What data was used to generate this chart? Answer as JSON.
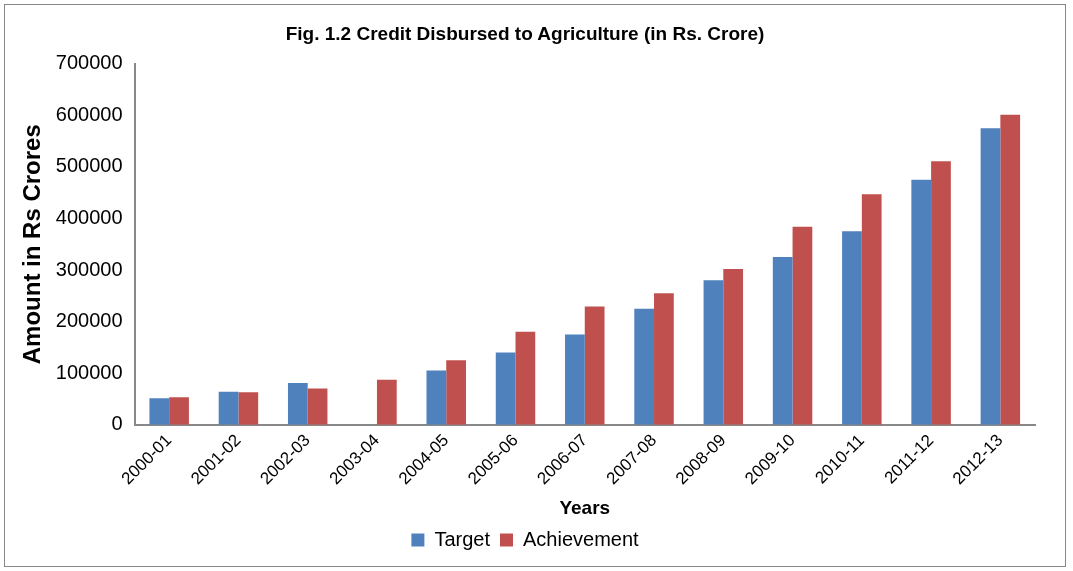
{
  "chart_data": {
    "type": "bar",
    "title": "Fig. 1.2 Credit Disbursed to Agriculture (in Rs. Crore)",
    "xlabel": "Years",
    "ylabel": "Amount in Rs Crores",
    "categories": [
      "2000-01",
      "2001-02",
      "2002-03",
      "2003-04",
      "2004-05",
      "2005-06",
      "2006-07",
      "2007-08",
      "2008-09",
      "2009-10",
      "2010-11",
      "2011-12",
      "2012-13"
    ],
    "series": [
      {
        "name": "Target",
        "color": "#4f81bd",
        "values": [
          51000,
          64000,
          81000,
          null,
          105000,
          140000,
          175000,
          225000,
          280000,
          325000,
          375000,
          475000,
          575000
        ]
      },
      {
        "name": "Achievement",
        "color": "#c0504d",
        "values": [
          53000,
          63000,
          70000,
          87000,
          125000,
          180000,
          229000,
          255000,
          302000,
          384000,
          447000,
          511000,
          601000
        ]
      }
    ],
    "ylim": [
      0,
      700000
    ],
    "yticks": [
      0,
      100000,
      200000,
      300000,
      400000,
      500000,
      600000,
      700000
    ],
    "grid": false,
    "legend": "bottom"
  }
}
